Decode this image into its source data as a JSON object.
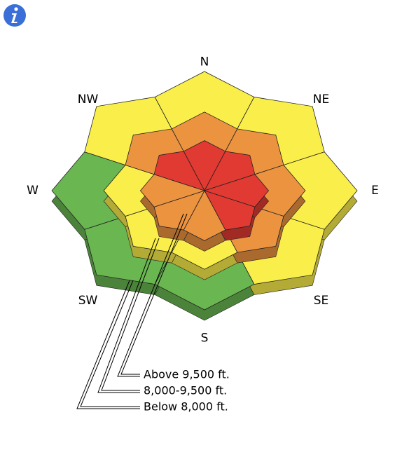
{
  "compass": {
    "labels": [
      "N",
      "NE",
      "E",
      "SE",
      "S",
      "SW",
      "W",
      "NW"
    ]
  },
  "elevations": [
    {
      "label": "Above 9,500 ft.",
      "colors": [
        "#e03a32",
        "#e03a32",
        "#e03a32",
        "#e03a32",
        "#ec9340",
        "#ec9340",
        "#ec9340",
        "#e03a32"
      ]
    },
    {
      "label": "8,000-9,500 ft.",
      "colors": [
        "#ec9340",
        "#ec9340",
        "#ec9340",
        "#ec9340",
        "#f9ee4a",
        "#f9ee4a",
        "#f9ee4a",
        "#ec9340"
      ]
    },
    {
      "label": "Below 8,000 ft.",
      "colors": [
        "#f9ee4a",
        "#f9ee4a",
        "#f9ee4a",
        "#f9ee4a",
        "#6ab651",
        "#6ab651",
        "#6ab651",
        "#f9ee4a"
      ]
    }
  ]
}
